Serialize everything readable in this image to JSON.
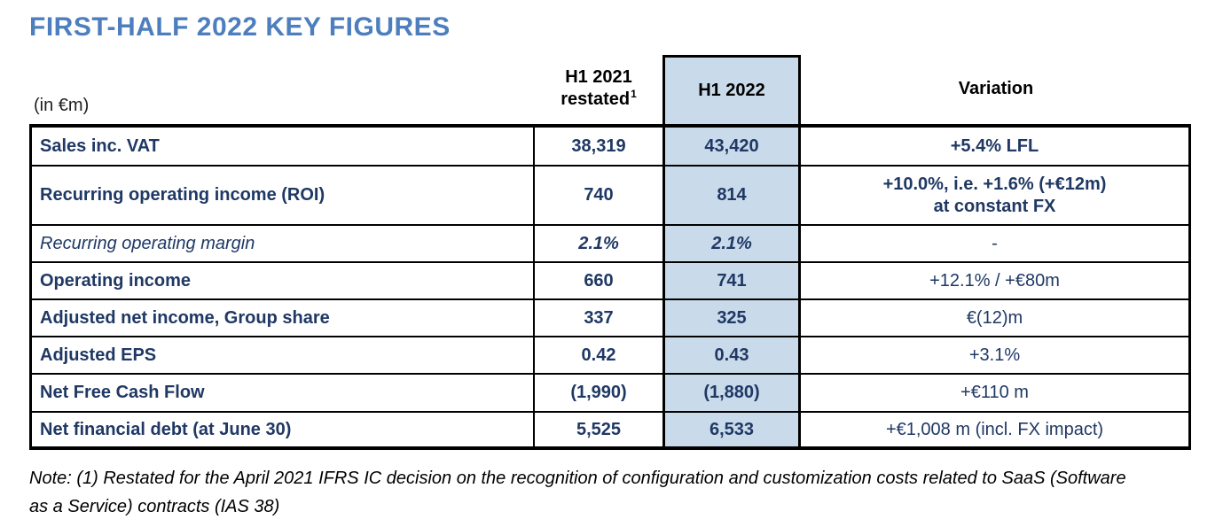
{
  "title": "FIRST-HALF 2022 KEY FIGURES",
  "table": {
    "unit_label": "(in €m)",
    "columns": {
      "h1_2021_line1": "H1 2021",
      "h1_2021_line2": "restated",
      "h1_2021_footnote": "1",
      "h1_2022": "H1 2022",
      "variation": "Variation"
    },
    "rows": [
      {
        "label": "Sales inc. VAT",
        "h1_2021": "38,319",
        "h1_2022": "43,420",
        "variation": "+5.4% LFL"
      },
      {
        "label": "Recurring operating income (ROI)",
        "h1_2021": "740",
        "h1_2022": "814",
        "variation": "+10.0%, i.e. +1.6% (+€12m)\nat constant FX"
      },
      {
        "label": "Recurring operating margin",
        "h1_2021": "2.1%",
        "h1_2022": "2.1%",
        "variation": "-"
      },
      {
        "label": "Operating income",
        "h1_2021": "660",
        "h1_2022": "741",
        "variation": "+12.1% / +€80m"
      },
      {
        "label": "Adjusted net income, Group share",
        "h1_2021": "337",
        "h1_2022": "325",
        "variation": "€(12)m"
      },
      {
        "label": "Adjusted EPS",
        "h1_2021": "0.42",
        "h1_2022": "0.43",
        "variation": "+3.1%"
      },
      {
        "label": "Net Free Cash Flow",
        "h1_2021": "(1,990)",
        "h1_2022": "(1,880)",
        "variation": "+€110 m"
      },
      {
        "label": "Net financial debt (at June 30)",
        "h1_2021": "5,525",
        "h1_2022": "6,533",
        "variation": "+€1,008 m (incl. FX impact)"
      }
    ]
  },
  "note": "Note: (1) Restated for the April 2021 IFRS IC decision on the recognition of configuration and customization costs related to SaaS (Software\nas a Service) contracts (IAS 38)",
  "colors": {
    "title_blue": "#4d7ebd",
    "text_navy": "#1f3864",
    "highlight_fill": "#c9daea",
    "border_black": "#000000"
  }
}
